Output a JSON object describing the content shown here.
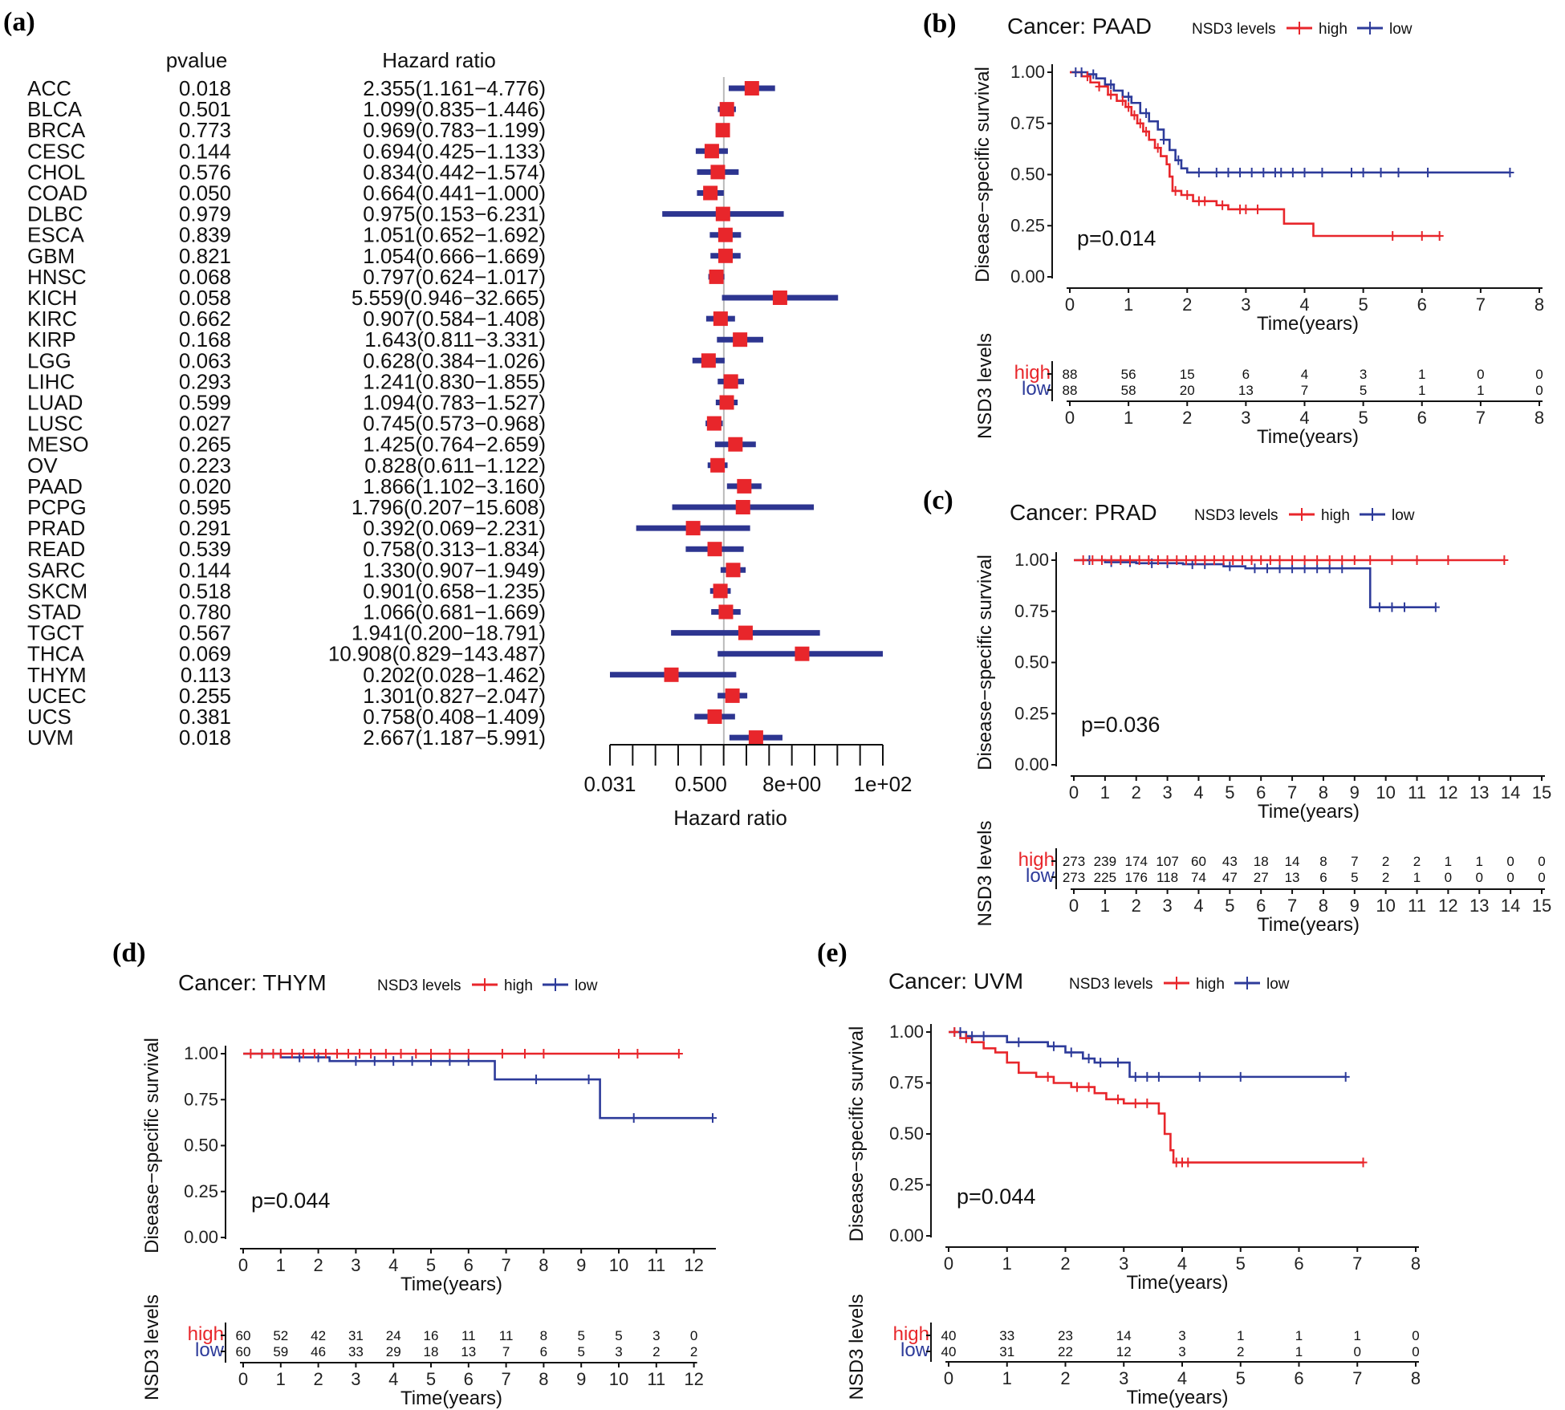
{
  "chart_data": [
    {
      "type": "forest",
      "panel_label": "(a)",
      "col_pvalue_header": "pvalue",
      "col_hr_header": "Hazard ratio",
      "xlabel": "Hazard ratio",
      "xscale": "log2",
      "xticks": [
        "0.031",
        "0.500",
        "8e+00",
        "1e+02"
      ],
      "xlim": [
        0.031,
        128
      ],
      "reference": 1,
      "rows": [
        {
          "name": "ACC",
          "pvalue": "0.018",
          "hr_text": "2.355(1.161−4.776)",
          "hr": 2.355,
          "lo": 1.161,
          "hi": 4.776
        },
        {
          "name": "BLCA",
          "pvalue": "0.501",
          "hr_text": "1.099(0.835−1.446)",
          "hr": 1.099,
          "lo": 0.835,
          "hi": 1.446
        },
        {
          "name": "BRCA",
          "pvalue": "0.773",
          "hr_text": "0.969(0.783−1.199)",
          "hr": 0.969,
          "lo": 0.783,
          "hi": 1.199
        },
        {
          "name": "CESC",
          "pvalue": "0.144",
          "hr_text": "0.694(0.425−1.133)",
          "hr": 0.694,
          "lo": 0.425,
          "hi": 1.133
        },
        {
          "name": "CHOL",
          "pvalue": "0.576",
          "hr_text": "0.834(0.442−1.574)",
          "hr": 0.834,
          "lo": 0.442,
          "hi": 1.574
        },
        {
          "name": "COAD",
          "pvalue": "0.050",
          "hr_text": "0.664(0.441−1.000)",
          "hr": 0.664,
          "lo": 0.441,
          "hi": 1.0
        },
        {
          "name": "DLBC",
          "pvalue": "0.979",
          "hr_text": "0.975(0.153−6.231)",
          "hr": 0.975,
          "lo": 0.153,
          "hi": 6.231
        },
        {
          "name": "ESCA",
          "pvalue": "0.839",
          "hr_text": "1.051(0.652−1.692)",
          "hr": 1.051,
          "lo": 0.652,
          "hi": 1.692
        },
        {
          "name": "GBM",
          "pvalue": "0.821",
          "hr_text": "1.054(0.666−1.669)",
          "hr": 1.054,
          "lo": 0.666,
          "hi": 1.669
        },
        {
          "name": "HNSC",
          "pvalue": "0.068",
          "hr_text": "0.797(0.624−1.017)",
          "hr": 0.797,
          "lo": 0.624,
          "hi": 1.017
        },
        {
          "name": "KICH",
          "pvalue": "0.058",
          "hr_text": "5.559(0.946−32.665)",
          "hr": 5.559,
          "lo": 0.946,
          "hi": 32.665
        },
        {
          "name": "KIRC",
          "pvalue": "0.662",
          "hr_text": "0.907(0.584−1.408)",
          "hr": 0.907,
          "lo": 0.584,
          "hi": 1.408
        },
        {
          "name": "KIRP",
          "pvalue": "0.168",
          "hr_text": "1.643(0.811−3.331)",
          "hr": 1.643,
          "lo": 0.811,
          "hi": 3.331
        },
        {
          "name": "LGG",
          "pvalue": "0.063",
          "hr_text": "0.628(0.384−1.026)",
          "hr": 0.628,
          "lo": 0.384,
          "hi": 1.026
        },
        {
          "name": "LIHC",
          "pvalue": "0.293",
          "hr_text": "1.241(0.830−1.855)",
          "hr": 1.241,
          "lo": 0.83,
          "hi": 1.855
        },
        {
          "name": "LUAD",
          "pvalue": "0.599",
          "hr_text": "1.094(0.783−1.527)",
          "hr": 1.094,
          "lo": 0.783,
          "hi": 1.527
        },
        {
          "name": "LUSC",
          "pvalue": "0.027",
          "hr_text": "0.745(0.573−0.968)",
          "hr": 0.745,
          "lo": 0.573,
          "hi": 0.968
        },
        {
          "name": "MESO",
          "pvalue": "0.265",
          "hr_text": "1.425(0.764−2.659)",
          "hr": 1.425,
          "lo": 0.764,
          "hi": 2.659
        },
        {
          "name": "OV",
          "pvalue": "0.223",
          "hr_text": "0.828(0.611−1.122)",
          "hr": 0.828,
          "lo": 0.611,
          "hi": 1.122
        },
        {
          "name": "PAAD",
          "pvalue": "0.020",
          "hr_text": "1.866(1.102−3.160)",
          "hr": 1.866,
          "lo": 1.102,
          "hi": 3.16
        },
        {
          "name": "PCPG",
          "pvalue": "0.595",
          "hr_text": "1.796(0.207−15.608)",
          "hr": 1.796,
          "lo": 0.207,
          "hi": 15.608
        },
        {
          "name": "PRAD",
          "pvalue": "0.291",
          "hr_text": "0.392(0.069−2.231)",
          "hr": 0.392,
          "lo": 0.069,
          "hi": 2.231
        },
        {
          "name": "READ",
          "pvalue": "0.539",
          "hr_text": "0.758(0.313−1.834)",
          "hr": 0.758,
          "lo": 0.313,
          "hi": 1.834
        },
        {
          "name": "SARC",
          "pvalue": "0.144",
          "hr_text": "1.330(0.907−1.949)",
          "hr": 1.33,
          "lo": 0.907,
          "hi": 1.949
        },
        {
          "name": "SKCM",
          "pvalue": "0.518",
          "hr_text": "0.901(0.658−1.235)",
          "hr": 0.901,
          "lo": 0.658,
          "hi": 1.235
        },
        {
          "name": "STAD",
          "pvalue": "0.780",
          "hr_text": "1.066(0.681−1.669)",
          "hr": 1.066,
          "lo": 0.681,
          "hi": 1.669
        },
        {
          "name": "TGCT",
          "pvalue": "0.567",
          "hr_text": "1.941(0.200−18.791)",
          "hr": 1.941,
          "lo": 0.2,
          "hi": 18.791
        },
        {
          "name": "THCA",
          "pvalue": "0.069",
          "hr_text": "10.908(0.829−143.487)",
          "hr": 10.908,
          "lo": 0.829,
          "hi": 143.487
        },
        {
          "name": "THYM",
          "pvalue": "0.113",
          "hr_text": "0.202(0.028−1.462)",
          "hr": 0.202,
          "lo": 0.028,
          "hi": 1.462
        },
        {
          "name": "UCEC",
          "pvalue": "0.255",
          "hr_text": "1.301(0.827−2.047)",
          "hr": 1.301,
          "lo": 0.827,
          "hi": 2.047
        },
        {
          "name": "UCS",
          "pvalue": "0.381",
          "hr_text": "0.758(0.408−1.409)",
          "hr": 0.758,
          "lo": 0.408,
          "hi": 1.409
        },
        {
          "name": "UVM",
          "pvalue": "0.018",
          "hr_text": "2.667(1.187−5.991)",
          "hr": 2.667,
          "lo": 1.187,
          "hi": 5.991
        }
      ],
      "colors": {
        "box": "#e8262b",
        "ci": "#2d3590",
        "ref": "#bbbbbb"
      }
    },
    {
      "type": "line",
      "subtype": "kaplan-meier",
      "panel_label": "(b)",
      "title": "Cancer: PAAD",
      "legend_title": "NSD3 levels",
      "series_labels": {
        "high": "high",
        "low": "low"
      },
      "ylabel": "Disease−specific survival",
      "xlabel": "Time(years)",
      "risk_ylabel": "NSD3 levels",
      "yticks": [
        "0.00",
        "0.25",
        "0.50",
        "0.75",
        "1.00"
      ],
      "xticks": [
        "0",
        "1",
        "2",
        "3",
        "4",
        "5",
        "6",
        "7",
        "8"
      ],
      "xlim": [
        0,
        8
      ],
      "ylim": [
        0,
        1
      ],
      "pvalue": "p=0.014",
      "high_steps": [
        [
          0,
          1.0
        ],
        [
          0.2,
          0.98
        ],
        [
          0.35,
          0.95
        ],
        [
          0.5,
          0.93
        ],
        [
          0.65,
          0.89
        ],
        [
          0.8,
          0.86
        ],
        [
          0.95,
          0.83
        ],
        [
          1.05,
          0.79
        ],
        [
          1.15,
          0.75
        ],
        [
          1.25,
          0.71
        ],
        [
          1.35,
          0.67
        ],
        [
          1.45,
          0.63
        ],
        [
          1.55,
          0.59
        ],
        [
          1.65,
          0.55
        ],
        [
          1.7,
          0.49
        ],
        [
          1.75,
          0.42
        ],
        [
          1.9,
          0.4
        ],
        [
          2.1,
          0.37
        ],
        [
          2.5,
          0.35
        ],
        [
          2.7,
          0.33
        ],
        [
          3.65,
          0.26
        ],
        [
          4.15,
          0.2
        ],
        [
          6.3,
          0.2
        ]
      ],
      "high_censors": [
        0.3,
        0.5,
        0.7,
        0.9,
        1.0,
        1.1,
        1.2,
        1.3,
        1.5,
        1.8,
        2.0,
        2.2,
        2.3,
        2.6,
        2.9,
        3.0,
        3.2,
        5.5,
        6.0,
        6.3
      ],
      "low_steps": [
        [
          0,
          1.0
        ],
        [
          0.3,
          0.99
        ],
        [
          0.45,
          0.97
        ],
        [
          0.6,
          0.94
        ],
        [
          0.75,
          0.91
        ],
        [
          0.9,
          0.88
        ],
        [
          1.05,
          0.85
        ],
        [
          1.2,
          0.8
        ],
        [
          1.35,
          0.76
        ],
        [
          1.5,
          0.72
        ],
        [
          1.6,
          0.67
        ],
        [
          1.7,
          0.62
        ],
        [
          1.8,
          0.57
        ],
        [
          1.9,
          0.53
        ],
        [
          2.0,
          0.51
        ],
        [
          7.5,
          0.51
        ]
      ],
      "low_censors": [
        0.1,
        0.2,
        0.4,
        0.7,
        1.0,
        1.3,
        1.6,
        1.85,
        2.2,
        2.5,
        2.7,
        2.9,
        3.1,
        3.3,
        3.5,
        3.6,
        3.8,
        4.0,
        4.3,
        4.8,
        5.0,
        5.3,
        5.6,
        6.1,
        7.5
      ],
      "risk_times": [
        "0",
        "1",
        "2",
        "3",
        "4",
        "5",
        "6",
        "7",
        "8"
      ],
      "risk_high": [
        "88",
        "56",
        "15",
        "6",
        "4",
        "3",
        "1",
        "0",
        "0"
      ],
      "risk_low": [
        "88",
        "58",
        "20",
        "13",
        "7",
        "5",
        "1",
        "1",
        "0"
      ],
      "colors": {
        "high": "#e8262b",
        "low": "#2d3b9a"
      }
    },
    {
      "type": "line",
      "subtype": "kaplan-meier",
      "panel_label": "(c)",
      "title": "Cancer: PRAD",
      "legend_title": "NSD3 levels",
      "series_labels": {
        "high": "high",
        "low": "low"
      },
      "ylabel": "Disease−specific survival",
      "xlabel": "Time(years)",
      "risk_ylabel": "NSD3 levels",
      "yticks": [
        "0.00",
        "0.25",
        "0.50",
        "0.75",
        "1.00"
      ],
      "xticks": [
        "0",
        "1",
        "2",
        "3",
        "4",
        "5",
        "6",
        "7",
        "8",
        "9",
        "10",
        "11",
        "12",
        "13",
        "14",
        "15"
      ],
      "xlim": [
        0,
        15
      ],
      "ylim": [
        0,
        1
      ],
      "pvalue": "p=0.036",
      "high_steps": [
        [
          0,
          1.0
        ],
        [
          13.8,
          1.0
        ]
      ],
      "high_censors": [
        0.3,
        0.6,
        0.9,
        1.2,
        1.5,
        1.8,
        2.1,
        2.4,
        2.7,
        3.0,
        3.3,
        3.6,
        3.9,
        4.2,
        4.5,
        4.8,
        5.1,
        5.4,
        5.7,
        6.0,
        6.3,
        6.6,
        7.0,
        7.4,
        7.8,
        8.2,
        8.6,
        9.0,
        9.5,
        10.2,
        11.0,
        12.0,
        13.8
      ],
      "low_steps": [
        [
          0,
          1.0
        ],
        [
          1.0,
          0.99
        ],
        [
          2.0,
          0.985
        ],
        [
          3.5,
          0.98
        ],
        [
          4.8,
          0.97
        ],
        [
          5.5,
          0.96
        ],
        [
          9.5,
          0.77
        ],
        [
          11.6,
          0.77
        ]
      ],
      "low_censors": [
        0.5,
        1.2,
        1.8,
        2.5,
        3.0,
        3.8,
        4.2,
        5.0,
        5.8,
        6.2,
        6.6,
        7.0,
        7.4,
        7.8,
        8.2,
        8.6,
        9.8,
        10.2,
        10.6,
        11.6
      ],
      "risk_times": [
        "0",
        "1",
        "2",
        "3",
        "4",
        "5",
        "6",
        "7",
        "8",
        "9",
        "10",
        "11",
        "12",
        "13",
        "14",
        "15"
      ],
      "risk_high": [
        "273",
        "239",
        "174",
        "107",
        "60",
        "43",
        "18",
        "14",
        "8",
        "7",
        "2",
        "2",
        "1",
        "1",
        "0",
        "0"
      ],
      "risk_low": [
        "273",
        "225",
        "176",
        "118",
        "74",
        "47",
        "27",
        "13",
        "6",
        "5",
        "2",
        "1",
        "0",
        "0",
        "0",
        "0"
      ],
      "colors": {
        "high": "#e8262b",
        "low": "#2d3b9a"
      }
    },
    {
      "type": "line",
      "subtype": "kaplan-meier",
      "panel_label": "(d)",
      "title": "Cancer: THYM",
      "legend_title": "NSD3 levels",
      "series_labels": {
        "high": "high",
        "low": "low"
      },
      "ylabel": "Disease−specific survival",
      "xlabel": "Time(years)",
      "risk_ylabel": "NSD3 levels",
      "yticks": [
        "0.00",
        "0.25",
        "0.50",
        "0.75",
        "1.00"
      ],
      "xticks": [
        "0",
        "1",
        "2",
        "3",
        "4",
        "5",
        "6",
        "7",
        "8",
        "9",
        "10",
        "11",
        "12"
      ],
      "xlim": [
        0,
        12.5
      ],
      "ylim": [
        0,
        1
      ],
      "pvalue": "p=0.044",
      "high_steps": [
        [
          0,
          1.0
        ],
        [
          11.6,
          1.0
        ]
      ],
      "high_censors": [
        0.2,
        0.5,
        0.8,
        1.0,
        1.3,
        1.6,
        1.9,
        2.2,
        2.5,
        2.8,
        3.1,
        3.4,
        3.8,
        4.2,
        4.6,
        5.0,
        5.5,
        6.0,
        6.9,
        7.5,
        8.0,
        10.0,
        10.5,
        11.6
      ],
      "low_steps": [
        [
          0,
          1.0
        ],
        [
          1.0,
          0.98
        ],
        [
          2.3,
          0.96
        ],
        [
          6.7,
          0.86
        ],
        [
          9.5,
          0.65
        ],
        [
          12.5,
          0.65
        ]
      ],
      "low_censors": [
        0.5,
        1.5,
        2.0,
        3.0,
        3.5,
        4.0,
        4.5,
        5.0,
        5.5,
        6.0,
        7.8,
        9.2,
        10.4,
        12.5
      ],
      "risk_times": [
        "0",
        "1",
        "2",
        "3",
        "4",
        "5",
        "6",
        "7",
        "8",
        "9",
        "10",
        "11",
        "12"
      ],
      "risk_high": [
        "60",
        "52",
        "42",
        "31",
        "24",
        "16",
        "11",
        "11",
        "8",
        "5",
        "5",
        "3",
        "0"
      ],
      "risk_low": [
        "60",
        "59",
        "46",
        "33",
        "29",
        "18",
        "13",
        "7",
        "6",
        "5",
        "3",
        "2",
        "2"
      ],
      "colors": {
        "high": "#e8262b",
        "low": "#2d3b9a"
      }
    },
    {
      "type": "line",
      "subtype": "kaplan-meier",
      "panel_label": "(e)",
      "title": "Cancer: UVM",
      "legend_title": "NSD3 levels",
      "series_labels": {
        "high": "high",
        "low": "low"
      },
      "ylabel": "Disease−specific survival",
      "xlabel": "Time(years)",
      "risk_ylabel": "NSD3 levels",
      "yticks": [
        "0.00",
        "0.25",
        "0.50",
        "0.75",
        "1.00"
      ],
      "xticks": [
        "0",
        "1",
        "2",
        "3",
        "4",
        "5",
        "6",
        "7",
        "8"
      ],
      "xlim": [
        0,
        8
      ],
      "ylim": [
        0,
        1
      ],
      "pvalue": "p=0.044",
      "high_steps": [
        [
          0,
          1.0
        ],
        [
          0.2,
          0.97
        ],
        [
          0.4,
          0.95
        ],
        [
          0.6,
          0.92
        ],
        [
          0.8,
          0.9
        ],
        [
          1.0,
          0.85
        ],
        [
          1.2,
          0.8
        ],
        [
          1.5,
          0.78
        ],
        [
          1.8,
          0.75
        ],
        [
          2.1,
          0.73
        ],
        [
          2.5,
          0.7
        ],
        [
          2.7,
          0.67
        ],
        [
          3.0,
          0.65
        ],
        [
          3.5,
          0.65
        ],
        [
          3.6,
          0.6
        ],
        [
          3.7,
          0.5
        ],
        [
          3.8,
          0.42
        ],
        [
          3.85,
          0.36
        ],
        [
          7.1,
          0.36
        ]
      ],
      "high_censors": [
        0.1,
        0.3,
        1.7,
        2.2,
        2.4,
        2.9,
        3.2,
        3.4,
        3.9,
        4.0,
        4.1,
        7.1
      ],
      "low_steps": [
        [
          0,
          1.0
        ],
        [
          0.3,
          0.98
        ],
        [
          1.0,
          0.95
        ],
        [
          1.7,
          0.93
        ],
        [
          2.0,
          0.9
        ],
        [
          2.3,
          0.87
        ],
        [
          2.5,
          0.85
        ],
        [
          3.1,
          0.78
        ],
        [
          6.8,
          0.78
        ]
      ],
      "low_censors": [
        0.1,
        0.2,
        0.4,
        0.6,
        1.2,
        1.8,
        2.1,
        2.4,
        2.6,
        2.9,
        3.2,
        3.4,
        3.6,
        4.3,
        5.0,
        6.8
      ],
      "risk_times": [
        "0",
        "1",
        "2",
        "3",
        "4",
        "5",
        "6",
        "7",
        "8"
      ],
      "risk_high": [
        "40",
        "33",
        "23",
        "14",
        "3",
        "1",
        "1",
        "1",
        "0"
      ],
      "risk_low": [
        "40",
        "31",
        "22",
        "12",
        "3",
        "2",
        "1",
        "0",
        "0"
      ],
      "colors": {
        "high": "#e8262b",
        "low": "#2d3b9a"
      }
    }
  ]
}
